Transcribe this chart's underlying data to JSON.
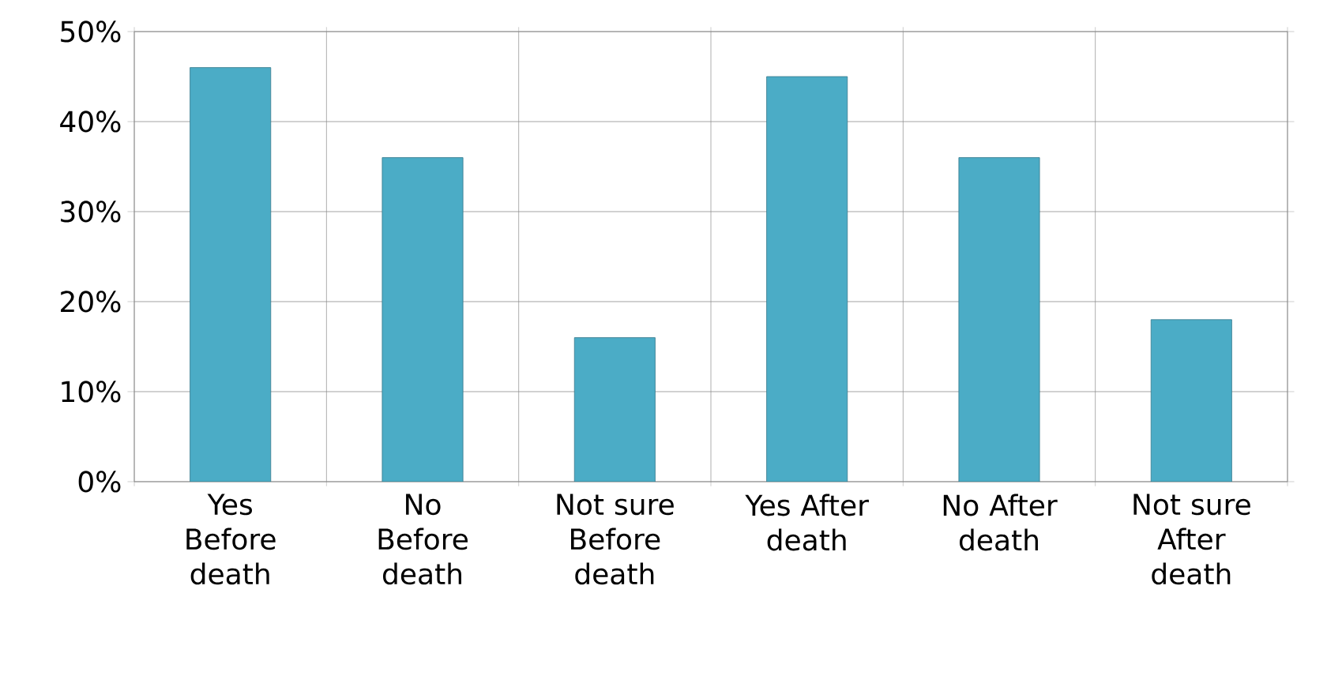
{
  "chart_data": {
    "type": "bar",
    "categories": [
      "Yes Before death",
      "No Before death",
      "Not sure Before death",
      "Yes After death",
      "No After death",
      "Not sure After death"
    ],
    "values": [
      46,
      36,
      16,
      45,
      36,
      18
    ],
    "color": "#4bacc6",
    "ylim": [
      0,
      50
    ],
    "yticks": [
      {
        "value": 0,
        "label": "0%"
      },
      {
        "value": 10,
        "label": "10%"
      },
      {
        "value": 20,
        "label": "20%"
      },
      {
        "value": 30,
        "label": "30%"
      },
      {
        "value": 40,
        "label": "40%"
      },
      {
        "value": 50,
        "label": "50%"
      }
    ],
    "grid": "y"
  }
}
